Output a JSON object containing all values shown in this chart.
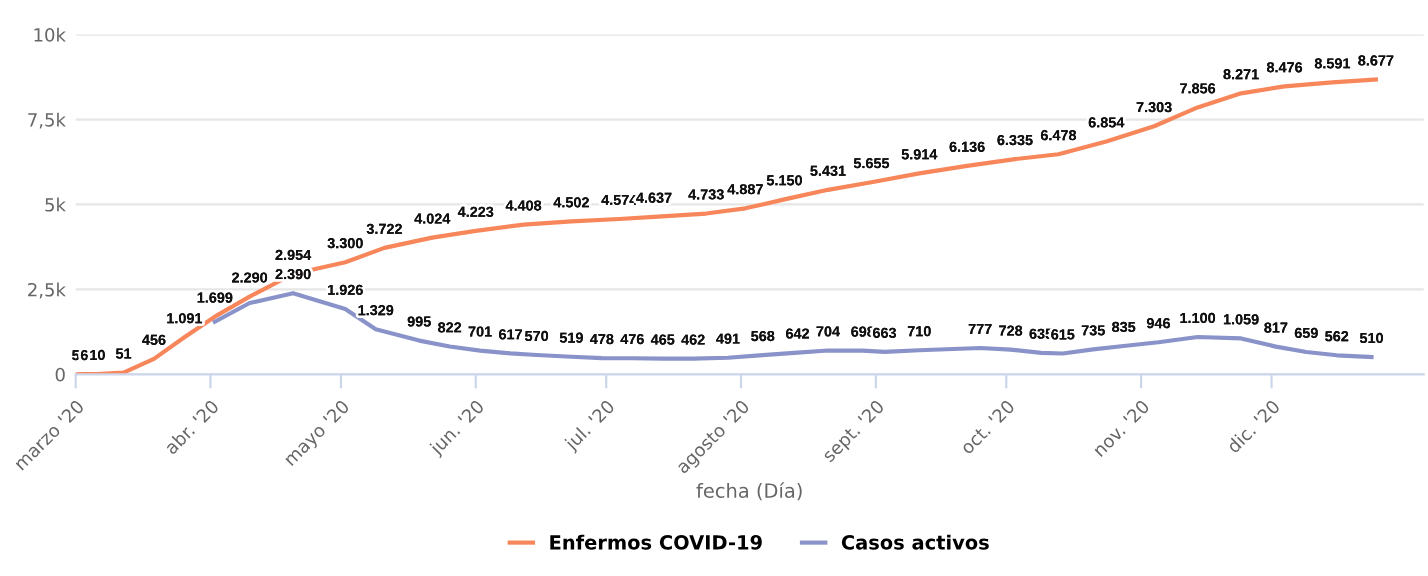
{
  "chart_data": {
    "type": "line",
    "xlabel": "fecha (Día)",
    "xlim": [
      "2020-03-01",
      "2021-01-05"
    ],
    "xticks": [
      {
        "value": "2020-03-01",
        "label": "marzo '20"
      },
      {
        "value": "2020-04-01",
        "label": "abr. '20"
      },
      {
        "value": "2020-05-01",
        "label": "mayo '20"
      },
      {
        "value": "2020-06-01",
        "label": "jun. '20"
      },
      {
        "value": "2020-07-01",
        "label": "jul. '20"
      },
      {
        "value": "2020-08-01",
        "label": "agosto '20"
      },
      {
        "value": "2020-09-01",
        "label": "sept. '20"
      },
      {
        "value": "2020-10-01",
        "label": "oct. '20"
      },
      {
        "value": "2020-11-01",
        "label": "nov. '20"
      },
      {
        "value": "2020-12-01",
        "label": "dic. '20"
      }
    ],
    "ylim": [
      0,
      10000
    ],
    "yticks": [
      0,
      {
        "value": 2500,
        "label": "2,5k"
      },
      {
        "value": 5000,
        "label": "5k"
      },
      {
        "value": 7500,
        "label": "7,5k"
      },
      {
        "value": 10000,
        "label": "10k"
      }
    ],
    "grid": "y",
    "legend": "bottom",
    "marker": "none",
    "line_style": "solid",
    "series": [
      {
        "name": "Enfermos COVID-19",
        "color": "#f7875a",
        "x": [
          "2020-03-01",
          "2020-03-03",
          "2020-03-06",
          "2020-03-12",
          "2020-03-19",
          "2020-03-26",
          "2020-04-02",
          "2020-04-10",
          "2020-04-20",
          "2020-05-02",
          "2020-05-11",
          "2020-05-22",
          "2020-06-01",
          "2020-06-12",
          "2020-06-23",
          "2020-07-04",
          "2020-07-12",
          "2020-07-24",
          "2020-08-02",
          "2020-08-11",
          "2020-08-21",
          "2020-08-31",
          "2020-09-11",
          "2020-09-22",
          "2020-10-03",
          "2020-10-13",
          "2020-10-24",
          "2020-11-04",
          "2020-11-14",
          "2020-11-24",
          "2020-12-04",
          "2020-12-15",
          "2020-12-25"
        ],
        "values": [
          5,
          6,
          10,
          51,
          456,
          1091,
          1699,
          2290,
          2954,
          3300,
          3722,
          4024,
          4223,
          4408,
          4502,
          4574,
          4637,
          4733,
          4887,
          5150,
          5431,
          5655,
          5914,
          6136,
          6335,
          6478,
          6854,
          7303,
          7856,
          8271,
          8476,
          8591,
          8677
        ],
        "value_labels": [
          "5",
          "6",
          "10",
          "51",
          "456",
          "1.091",
          "1.699",
          "2.290",
          "2.954",
          "3.300",
          "3.722",
          "4.024",
          "4.223",
          "4.408",
          "4.502",
          "4.574",
          "4.637",
          "4.733",
          "4.887",
          "5.150",
          "5.431",
          "5.655",
          "5.914",
          "6.136",
          "6.335",
          "6.478",
          "6.854",
          "7.303",
          "7.856",
          "8.271",
          "8.476",
          "8.591",
          "8.677"
        ]
      },
      {
        "name": "Casos activos",
        "color": "#8a93c9",
        "x": [
          "2020-04-02",
          "2020-04-10",
          "2020-04-20",
          "2020-05-02",
          "2020-05-09",
          "2020-05-19",
          "2020-05-26",
          "2020-06-02",
          "2020-06-09",
          "2020-06-15",
          "2020-06-23",
          "2020-06-30",
          "2020-07-07",
          "2020-07-14",
          "2020-07-21",
          "2020-07-29",
          "2020-08-06",
          "2020-08-14",
          "2020-08-21",
          "2020-08-29",
          "2020-09-03",
          "2020-09-11",
          "2020-09-25",
          "2020-10-02",
          "2020-10-09",
          "2020-10-14",
          "2020-10-21",
          "2020-10-28",
          "2020-11-05",
          "2020-11-14",
          "2020-11-24",
          "2020-12-02",
          "2020-12-09",
          "2020-12-16",
          "2020-12-24"
        ],
        "values": [
          1550,
          2100,
          2390,
          1926,
          1329,
          995,
          822,
          701,
          617,
          570,
          519,
          478,
          476,
          465,
          462,
          491,
          568,
          642,
          704,
          698,
          663,
          710,
          777,
          728,
          635,
          615,
          735,
          835,
          946,
          1100,
          1059,
          817,
          659,
          562,
          510
        ],
        "value_labels": [
          null,
          null,
          "2.390",
          "1.926",
          "1.329",
          "995",
          "822",
          "701",
          "617",
          "570",
          "519",
          "478",
          "476",
          "465",
          "462",
          "491",
          "568",
          "642",
          "704",
          "698",
          "663",
          "710",
          "777",
          "728",
          "635",
          "615",
          "735",
          "835",
          "946",
          "1.100",
          "1.059",
          "817",
          "659",
          "562",
          "510"
        ]
      }
    ]
  }
}
